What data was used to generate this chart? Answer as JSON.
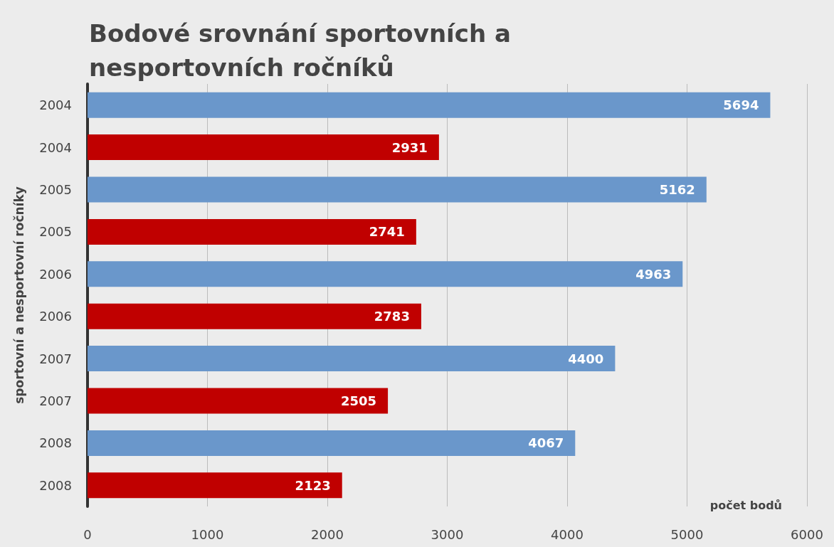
{
  "chart_data": {
    "type": "bar",
    "orientation": "horizontal",
    "title": "Bodové srovnání sportovních a nesportovních ročníků",
    "xlabel": "počet bodů",
    "ylabel": "sportovní a nesportovní ročníky",
    "categories": [
      "2004",
      "2004",
      "2005",
      "2005",
      "2006",
      "2006",
      "2007",
      "2007",
      "2008",
      "2008"
    ],
    "values": [
      5694,
      2931,
      5162,
      2741,
      4963,
      2783,
      4400,
      2505,
      4067,
      2123
    ],
    "colors": [
      "#6a97cb",
      "#c00000",
      "#6a97cb",
      "#c00000",
      "#6a97cb",
      "#c00000",
      "#6a97cb",
      "#c00000",
      "#6a97cb",
      "#c00000"
    ],
    "xlim": [
      0,
      6000
    ],
    "xticks": [
      0,
      1000,
      2000,
      3000,
      4000,
      5000,
      6000
    ],
    "grid": "x",
    "data_labels": true
  }
}
